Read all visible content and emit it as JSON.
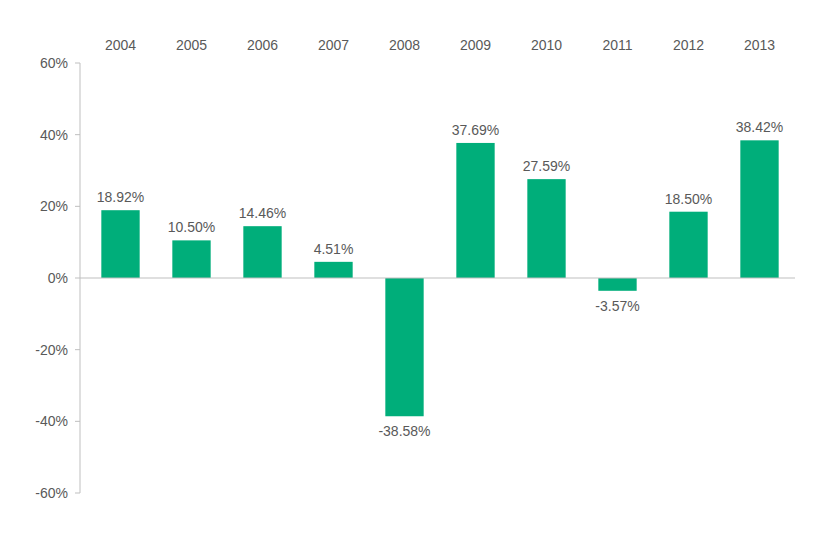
{
  "chart_data": {
    "type": "bar",
    "categories": [
      "2004",
      "2005",
      "2006",
      "2007",
      "2008",
      "2009",
      "2010",
      "2011",
      "2012",
      "2013"
    ],
    "values": [
      18.92,
      10.5,
      14.46,
      4.51,
      -38.58,
      37.69,
      27.59,
      -3.57,
      18.5,
      38.42
    ],
    "value_labels": [
      "18.92%",
      "10.50%",
      "14.46%",
      "4.51%",
      "-38.58%",
      "37.69%",
      "27.59%",
      "-3.57%",
      "18.50%",
      "38.42%"
    ],
    "color": "#00ae7a",
    "ylim": [
      -60,
      60
    ],
    "yticks": [
      {
        "value": 60,
        "label": "60%"
      },
      {
        "value": 40,
        "label": "40%"
      },
      {
        "value": 20,
        "label": "20%"
      },
      {
        "value": 0,
        "label": "0%"
      },
      {
        "value": -20,
        "label": "-20%"
      },
      {
        "value": -40,
        "label": "-40%"
      },
      {
        "value": -60,
        "label": "-60%"
      }
    ],
    "grid": false,
    "data_labels": true
  }
}
